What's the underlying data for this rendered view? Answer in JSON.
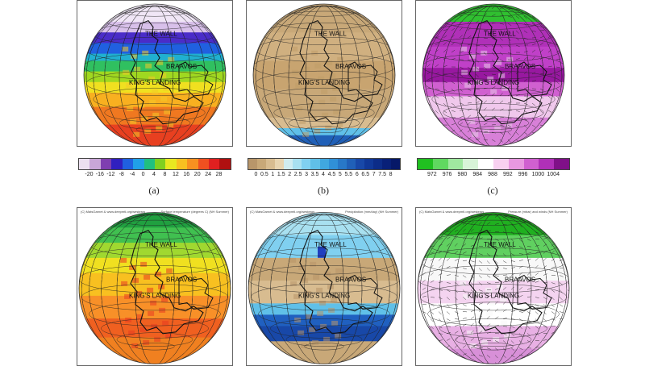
{
  "panels": [
    {
      "caption": "(a)",
      "field": "temperature-winter",
      "credit_left": "",
      "credit_right": ""
    },
    {
      "caption": "(b)",
      "field": "precip-winter",
      "credit_left": "",
      "credit_right": ""
    },
    {
      "caption": "(c)",
      "field": "pressure-winter",
      "credit_left": "",
      "credit_right": ""
    },
    {
      "caption": "",
      "field": "temperature-summer",
      "credit_left": "(C) MatsGarnet & www.deepmtl.org/westeros",
      "credit_right": "Surface temperature (degrees C) (NH Summer)"
    },
    {
      "caption": "",
      "field": "precip-summer",
      "credit_left": "(C) MatsGarnet & www.deepmtl.org/westeros",
      "credit_right": "Precipitation (mm/day) (NH Summer)"
    },
    {
      "caption": "",
      "field": "pressure-summer",
      "credit_left": "(C) MatsGarnet & www.deepmtl.org/westeros",
      "credit_right": "Pressure (mbar) and winds (NH Summer)"
    }
  ],
  "places": {
    "the_wall": "THE WALL",
    "braavos": "BRAAVOS",
    "kings_landing": "KING'S LANDING"
  },
  "legends": [
    {
      "name": "temperature",
      "ticks": [
        "-20",
        "-16",
        "-12",
        "-8",
        "-4",
        "0",
        "4",
        "8",
        "12",
        "16",
        "20",
        "24",
        "28"
      ],
      "colors": [
        "#ece0f0",
        "#c9a6d8",
        "#7f3fb0",
        "#3020c0",
        "#2060e0",
        "#20a0e8",
        "#20c080",
        "#80d020",
        "#e8e820",
        "#f8c020",
        "#f89020",
        "#f05020",
        "#e02020",
        "#b01010"
      ]
    },
    {
      "name": "precipitation",
      "ticks": [
        "0",
        "0.5",
        "1",
        "1.5",
        "2",
        "2.5",
        "3",
        "3.5",
        "4",
        "4.5",
        "5",
        "5.5",
        "6",
        "6.5",
        "7",
        "7.5",
        "8"
      ],
      "colors": [
        "#b8966a",
        "#c8a878",
        "#d8bc90",
        "#e8d4b0",
        "#d0ecf0",
        "#a8e0f0",
        "#80d0f0",
        "#60c0e8",
        "#40a8e0",
        "#3090d8",
        "#2878c8",
        "#2060b8",
        "#1848a8",
        "#103898",
        "#0c2c88",
        "#082078",
        "#061868"
      ]
    },
    {
      "name": "pressure",
      "ticks": [
        "972",
        "976",
        "980",
        "984",
        "988",
        "992",
        "996",
        "1000",
        "1004"
      ],
      "colors": [
        "#20c020",
        "#60d860",
        "#a0e8a0",
        "#d8f4d8",
        "#ffffff",
        "#f8d0f0",
        "#e898e0",
        "#d060d0",
        "#b030b8",
        "#801088"
      ]
    }
  ]
}
